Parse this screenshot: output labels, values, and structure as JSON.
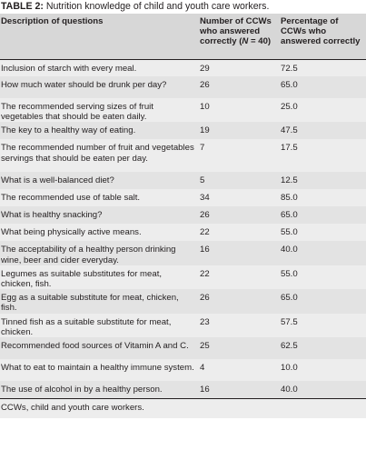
{
  "caption": {
    "label": "TABLE 2:",
    "text": "Nutrition knowledge of child and youth care workers."
  },
  "headers": {
    "col1": "Description of questions",
    "col2_prefix": "Number of CCWs who answered correctly (",
    "col2_n": "N",
    "col2_suffix": " = 40)",
    "col3": "Percentage of CCWs who answered correctly"
  },
  "rows": [
    {
      "q": "Inclusion of starch with every meal.",
      "n": "29",
      "p": "72.5"
    },
    {
      "q": "How much water should be drunk per day?",
      "n": "26",
      "p": "65.0"
    },
    {
      "q": "The recommended serving sizes of fruit vegetables that should be eaten daily.",
      "n": "10",
      "p": "25.0"
    },
    {
      "q": "The key to a healthy way of eating.",
      "n": "19",
      "p": "47.5"
    },
    {
      "q": "The recommended number of fruit and vegetables servings that should be eaten per day.",
      "n": "7",
      "p": "17.5"
    },
    {
      "q": "What is a well-balanced diet?",
      "n": "5",
      "p": "12.5"
    },
    {
      "q": "The recommended use of table salt.",
      "n": "34",
      "p": "85.0"
    },
    {
      "q": "What is healthy snacking?",
      "n": "26",
      "p": "65.0"
    },
    {
      "q": "What being physically active means.",
      "n": "22",
      "p": "55.0"
    },
    {
      "q": "The acceptability of a healthy person drinking wine, beer and cider everyday.",
      "n": "16",
      "p": "40.0"
    },
    {
      "q": "Legumes as suitable substitutes for meat, chicken, fish.",
      "n": "22",
      "p": "55.0"
    },
    {
      "q": "Egg as a suitable substitute for meat, chicken, fish.",
      "n": "26",
      "p": "65.0"
    },
    {
      "q": "Tinned fish as a suitable substitute for meat, chicken.",
      "n": "23",
      "p": "57.5"
    },
    {
      "q": "Recommended food sources of Vitamin A and C.",
      "n": "25",
      "p": "62.5"
    },
    {
      "q": "What to eat to maintain a healthy immune system.",
      "n": "4",
      "p": "10.0"
    },
    {
      "q": "The use of alcohol in by a healthy person.",
      "n": "16",
      "p": "40.0"
    }
  ],
  "footnote": "CCWs, child and youth care workers."
}
